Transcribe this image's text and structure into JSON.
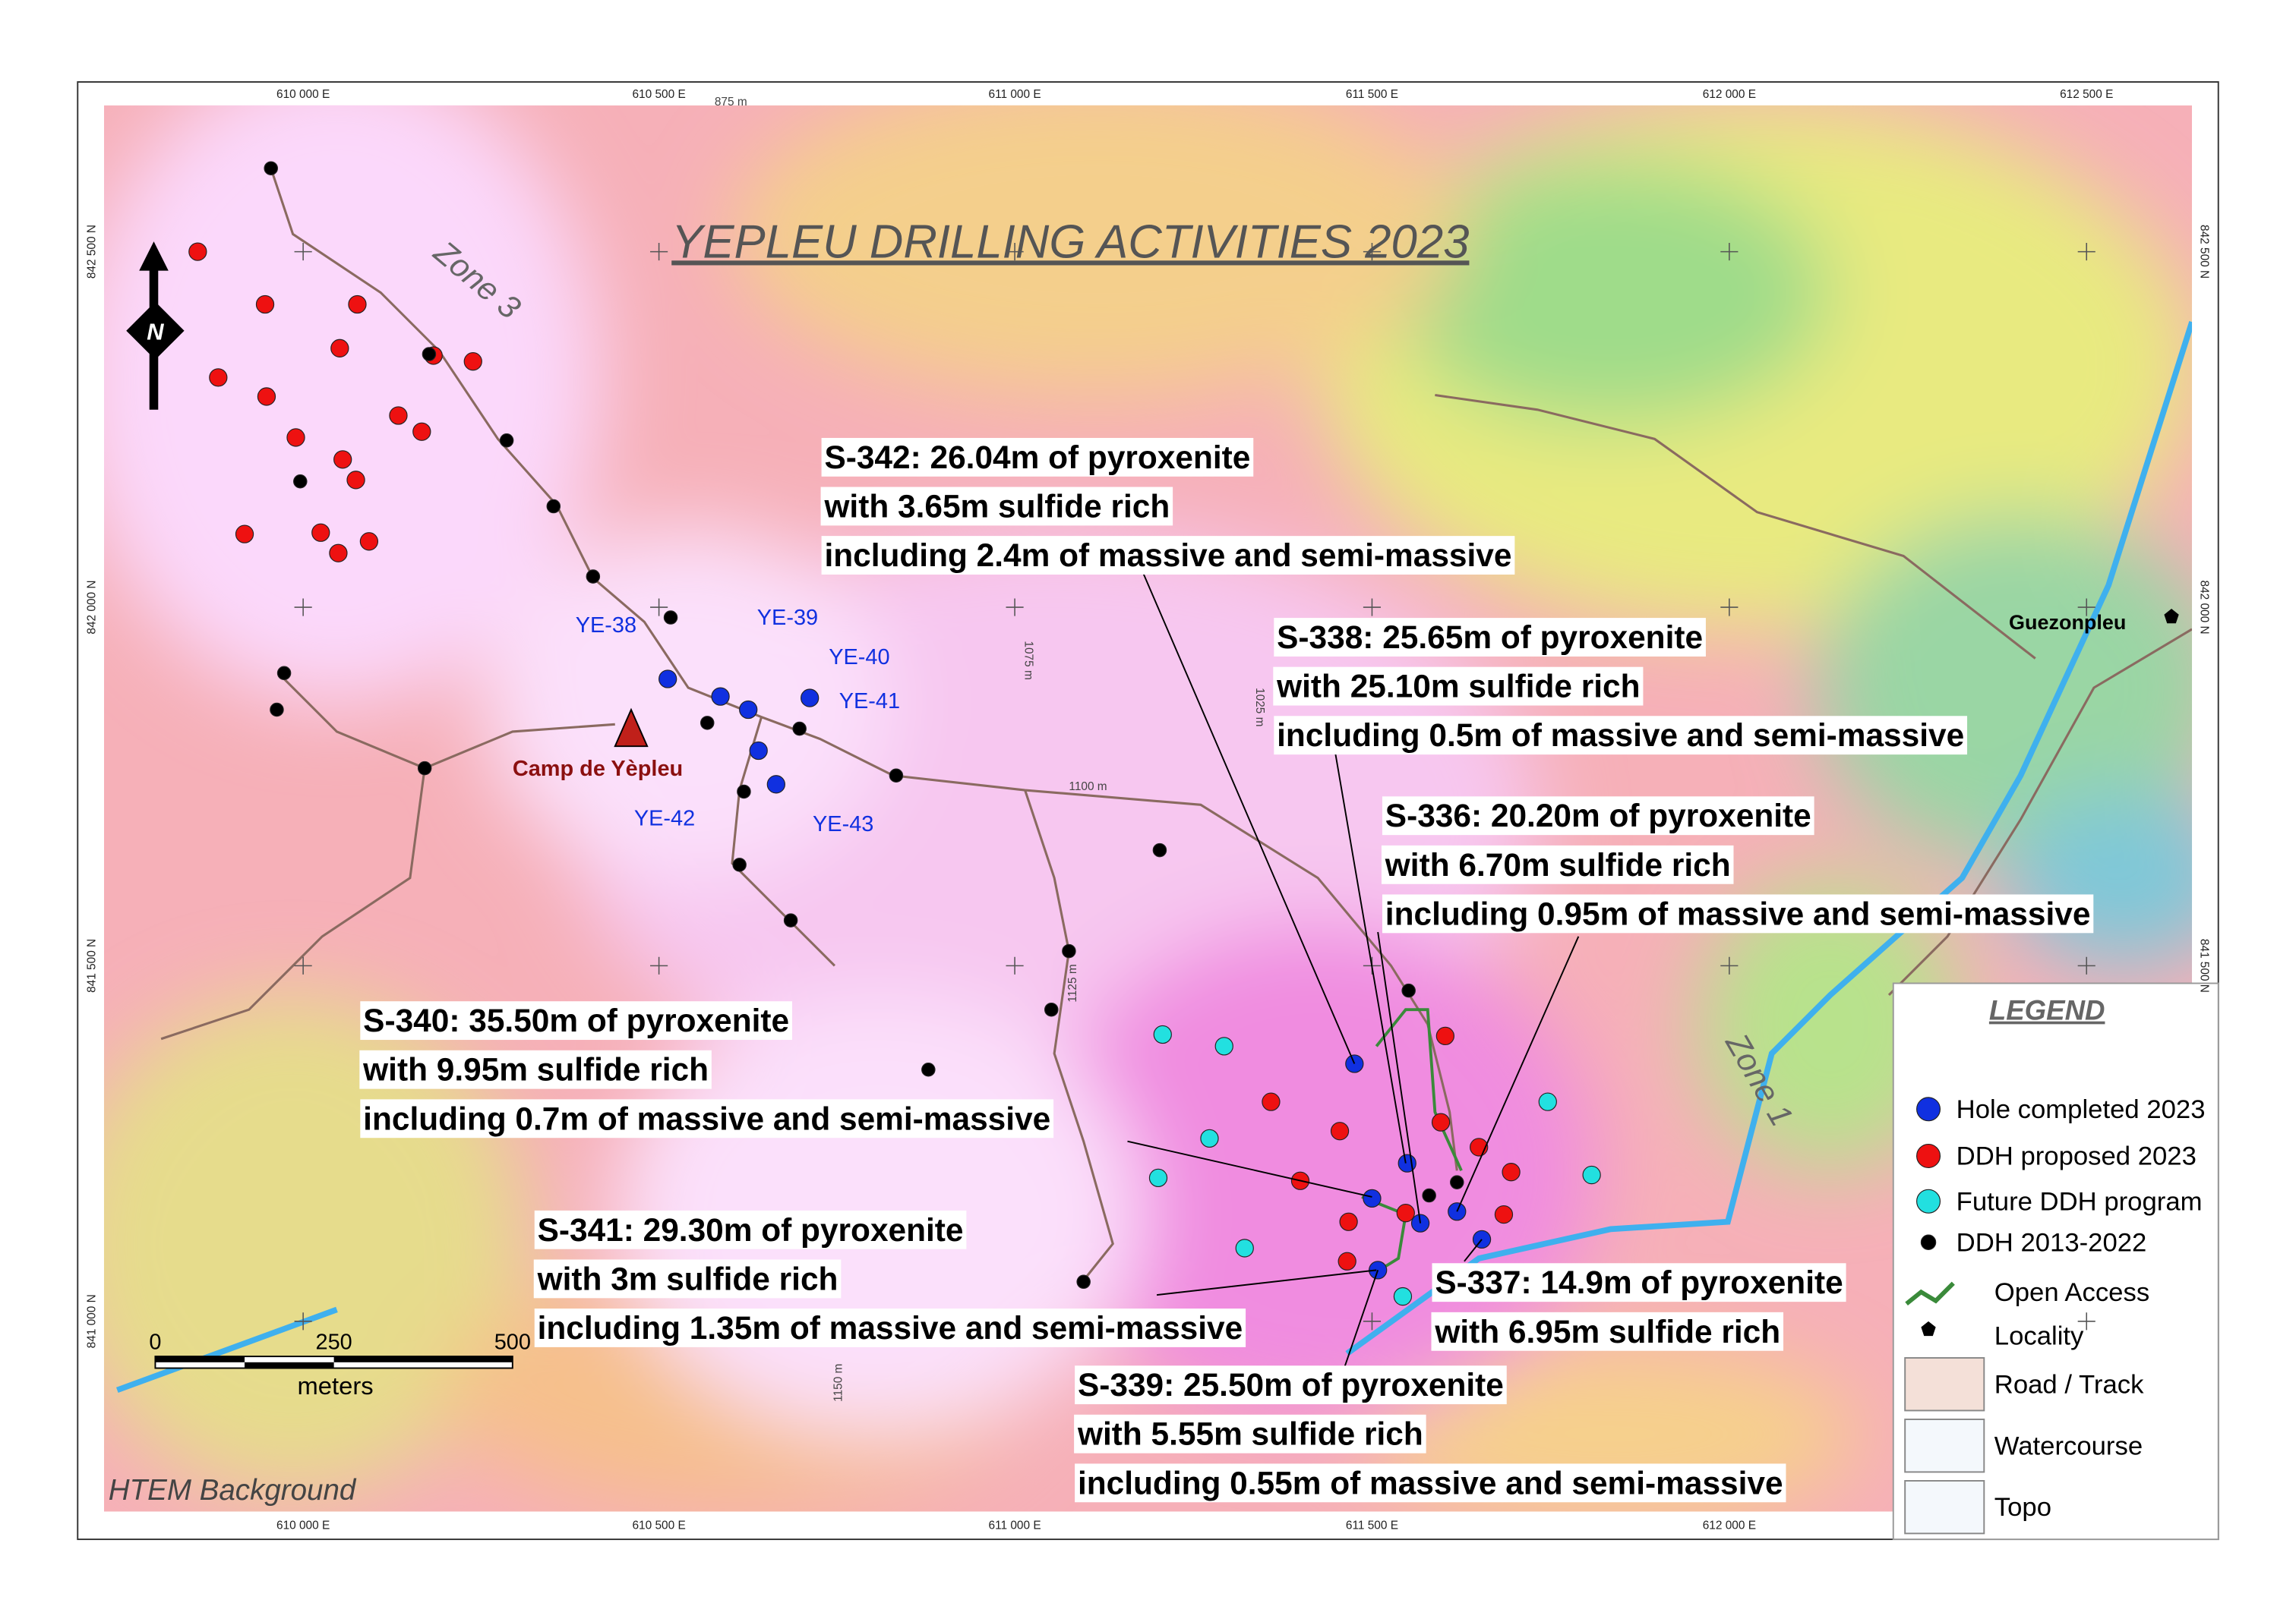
{
  "title": "YEPLEU DRILLING ACTIVITIES 2023",
  "eastings_top": [
    "610 000 E",
    "610 500 E",
    "611 000 E",
    "611 500 E",
    "612 000 E",
    "612 500 E"
  ],
  "eastings_bottom": [
    "610 000 E",
    "610 500 E",
    "611 000 E",
    "611 500 E",
    "612 000 E"
  ],
  "northings_left": [
    "842 500 N",
    "842 000 N",
    "841 500 N",
    "841 000 N"
  ],
  "northings_right": [
    "842 500 N",
    "842 000 N",
    "841 500 N"
  ],
  "contours": [
    "875 m",
    "1075 m",
    "1025 m",
    "1100 m",
    "1125 m",
    "1150 m"
  ],
  "zones": [
    "Zone 3",
    "Zone 1"
  ],
  "holes": [
    "YE-38",
    "YE-39",
    "YE-40",
    "YE-41",
    "YE-42",
    "YE-43"
  ],
  "places": [
    "Camp de Yèpleu",
    "Guezonpleu"
  ],
  "north": "N",
  "callouts": [
    {
      "lines": [
        "S-342: 26.04m of pyroxenite",
        "with 3.65m sulfide rich",
        "including 2.4m of massive and semi-massive"
      ]
    },
    {
      "lines": [
        "S-338: 25.65m of pyroxenite",
        "with 25.10m sulfide rich",
        "including 0.5m of massive and semi-massive"
      ]
    },
    {
      "lines": [
        "S-336: 20.20m of pyroxenite",
        "with 6.70m sulfide rich",
        "including 0.95m of massive and semi-massive"
      ]
    },
    {
      "lines": [
        "S-340: 35.50m of pyroxenite",
        "with 9.95m sulfide rich",
        "including 0.7m of massive and semi-massive"
      ]
    },
    {
      "lines": [
        "S-341: 29.30m of pyroxenite",
        "with 3m sulfide rich",
        "including 1.35m of massive and semi-massive"
      ]
    },
    {
      "lines": [
        "S-337: 14.9m of pyroxenite",
        "with 6.95m sulfide rich"
      ]
    },
    {
      "lines": [
        "S-339: 25.50m of pyroxenite",
        "with 5.55m sulfide rich",
        "including 0.55m of massive and semi-massive"
      ]
    }
  ],
  "scale": {
    "ticks": [
      "0",
      "250",
      "500"
    ],
    "unit": "meters"
  },
  "legend": {
    "title": "LEGEND",
    "items": [
      "Hole completed 2023",
      "DDH proposed 2023",
      "Future DDH program",
      "DDH 2013-2022",
      "Open Access",
      "Locality",
      "Road / Track",
      "Watercourse",
      "Topo"
    ]
  },
  "background": "HTEM Background"
}
